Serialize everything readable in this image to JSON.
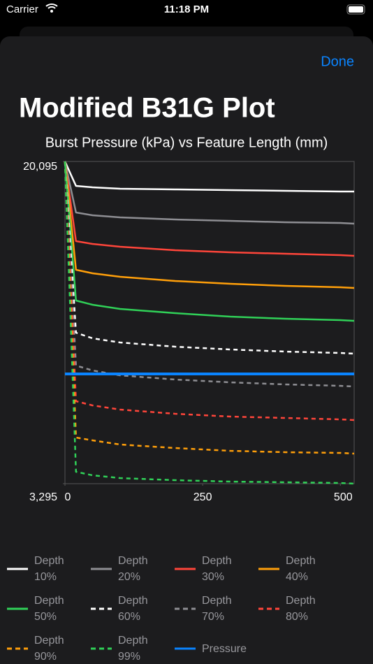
{
  "status_bar": {
    "carrier": "Carrier",
    "time": "11:18 PM"
  },
  "done_button": "Done",
  "title": "Modified B31G Plot",
  "chart_data": {
    "type": "line",
    "title": "Burst Pressure (kPa) vs Feature Length (mm)",
    "x": [
      0,
      20,
      50,
      100,
      200,
      300,
      400,
      500,
      525
    ],
    "xlim": [
      0,
      525
    ],
    "xticks": [
      0,
      250,
      500
    ],
    "ylim": [
      3295,
      20095
    ],
    "yticks": [
      {
        "value": 3295,
        "label": "3,295"
      },
      {
        "value": 20095,
        "label": "20,095"
      }
    ],
    "legend": "bottom",
    "series": [
      {
        "name": "Depth 10%",
        "color": "#ffffff",
        "dashed": false,
        "values": [
          20095,
          18820,
          18747,
          18674,
          18637,
          18601,
          18564,
          18528,
          18528
        ]
      },
      {
        "name": "Depth 20%",
        "color": "#8e8e93",
        "dashed": false,
        "values": [
          20095,
          17435,
          17289,
          17180,
          17070,
          16997,
          16924,
          16888,
          16852
        ]
      },
      {
        "name": "Depth 30%",
        "color": "#ff453a",
        "dashed": false,
        "values": [
          20095,
          15941,
          15795,
          15649,
          15467,
          15357,
          15284,
          15212,
          15175
        ]
      },
      {
        "name": "Depth 40%",
        "color": "#ff9f0a",
        "dashed": false,
        "values": [
          20095,
          14446,
          14264,
          14082,
          13863,
          13717,
          13608,
          13535,
          13499
        ]
      },
      {
        "name": "Depth 50%",
        "color": "#30d158",
        "dashed": false,
        "values": [
          20095,
          12843,
          12624,
          12406,
          12187,
          12005,
          11895,
          11822,
          11786
        ]
      },
      {
        "name": "Depth 60%",
        "color": "#ffffff",
        "dashed": true,
        "values": [
          20095,
          11166,
          10875,
          10656,
          10438,
          10292,
          10182,
          10110,
          10073
        ]
      },
      {
        "name": "Depth 70%",
        "color": "#8e8e93",
        "dashed": true,
        "values": [
          20095,
          9454,
          9199,
          8944,
          8725,
          8579,
          8469,
          8396,
          8360
        ]
      },
      {
        "name": "Depth 80%",
        "color": "#ff453a",
        "dashed": true,
        "values": [
          20095,
          7595,
          7376,
          7157,
          6939,
          6793,
          6720,
          6647,
          6611
        ]
      },
      {
        "name": "Depth 90%",
        "color": "#ff9f0a",
        "dashed": true,
        "values": [
          20095,
          5700,
          5554,
          5335,
          5153,
          5007,
          4935,
          4898,
          4862
        ]
      },
      {
        "name": "Depth 99%",
        "color": "#30d158",
        "dashed": true,
        "values": [
          20095,
          3914,
          3732,
          3586,
          3477,
          3404,
          3368,
          3331,
          3295
        ]
      },
      {
        "name": "Pressure",
        "color": "#0a84ff",
        "dashed": false,
        "values": [
          9016,
          9016,
          9016,
          9016,
          9016,
          9016,
          9016,
          9016,
          9016
        ]
      }
    ]
  }
}
